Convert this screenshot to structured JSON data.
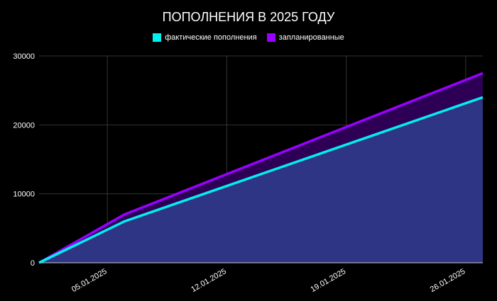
{
  "chart_data": {
    "type": "area",
    "title": "ПОПОЛНЕНИЯ В 2025 ГОДУ",
    "x": [
      "01.01.2025",
      "06.01.2025",
      "27.01.2025"
    ],
    "series": [
      {
        "name": "фактические пополнения",
        "color": "#00f0f0",
        "fill": "#2e3585",
        "values": [
          0,
          6000,
          24000
        ]
      },
      {
        "name": "запланированные",
        "color": "#9900ff",
        "fill": "#2e0055",
        "values": [
          0,
          7000,
          27500
        ]
      }
    ],
    "x_ticks": [
      "05.01.2025",
      "12.01.2025",
      "19.01.2025",
      "26.01.2025"
    ],
    "y_ticks": [
      0,
      10000,
      20000,
      30000
    ],
    "ylim": [
      0,
      30000
    ],
    "xlim": [
      "01.01.2025",
      "27.01.2025"
    ],
    "grid": true,
    "legend": "top"
  }
}
